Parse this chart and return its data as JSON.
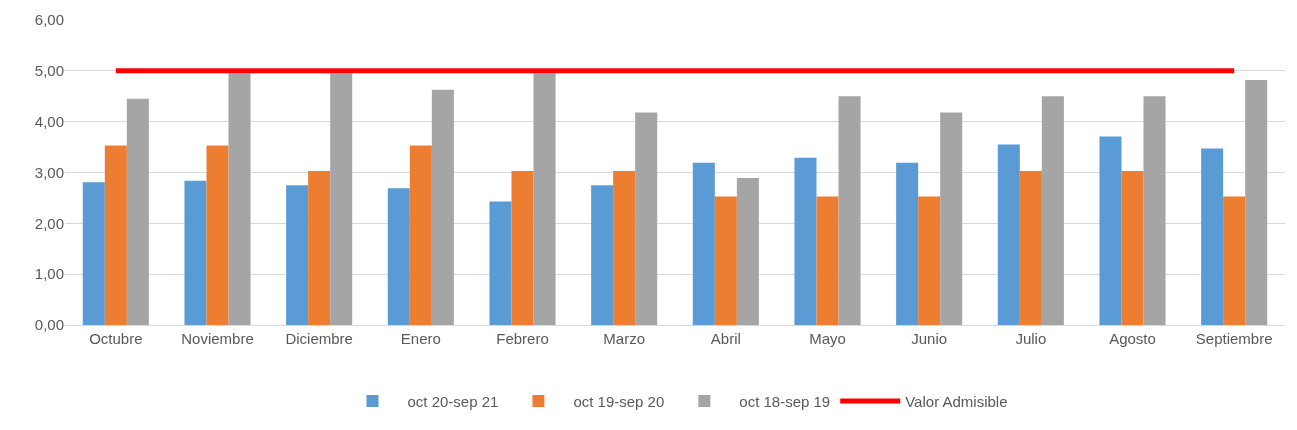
{
  "chart_data": {
    "type": "bar",
    "categories": [
      "Octubre",
      "Noviembre",
      "Diciembre",
      "Enero",
      "Febrero",
      "Marzo",
      "Abril",
      "Mayo",
      "Junio",
      "Julio",
      "Agosto",
      "Septiembre"
    ],
    "series": [
      {
        "name": "oct 20-sep 21",
        "color": "#5b9bd5",
        "values": [
          2.81,
          2.84,
          2.75,
          2.69,
          2.43,
          2.75,
          3.19,
          3.29,
          3.19,
          3.55,
          3.71,
          3.47
        ]
      },
      {
        "name": "oct 19-sep 20",
        "color": "#ed7d31",
        "values": [
          3.53,
          3.53,
          3.03,
          3.53,
          3.03,
          3.03,
          2.53,
          2.53,
          2.53,
          3.03,
          3.03,
          2.53
        ]
      },
      {
        "name": "oct 18-sep 19",
        "color": "#a5a5a5",
        "values": [
          4.45,
          4.95,
          4.95,
          4.63,
          4.95,
          4.18,
          2.89,
          4.5,
          4.18,
          4.5,
          4.5,
          4.82
        ]
      },
      {
        "name": "Valor Admisible",
        "type": "line",
        "color": "#ff0000",
        "values": [
          5,
          5,
          5,
          5,
          5,
          5,
          5,
          5,
          5,
          5,
          5,
          5
        ]
      }
    ],
    "ylim": [
      0,
      6
    ],
    "yticks": [
      {
        "value": 0,
        "label": "0,00"
      },
      {
        "value": 1,
        "label": "1,00"
      },
      {
        "value": 2,
        "label": "2,00"
      },
      {
        "value": 3,
        "label": "3,00"
      },
      {
        "value": 4,
        "label": "4,00"
      },
      {
        "value": 5,
        "label": "5,00"
      },
      {
        "value": 6,
        "label": "6,00"
      }
    ],
    "grid": "y",
    "legend": "bottom"
  }
}
